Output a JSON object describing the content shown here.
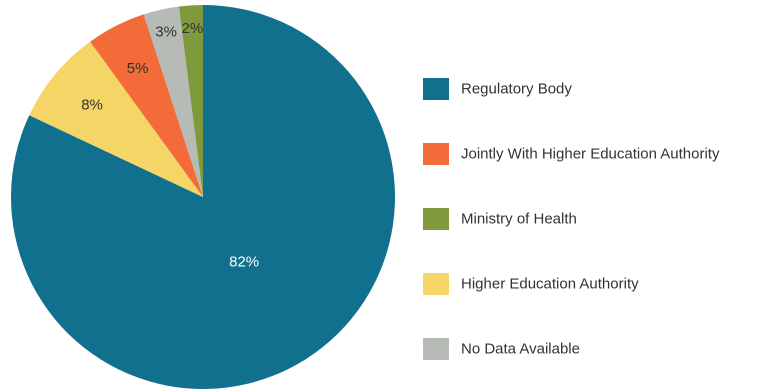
{
  "chart_data": {
    "type": "pie",
    "categories": [
      "Regulatory Body",
      "Jointly With Higher Education Authority",
      "Ministry of Health",
      "Higher Education Authority",
      "No Data Available"
    ],
    "values": [
      82,
      5,
      2,
      8,
      3
    ],
    "value_labels": [
      "82%",
      "5%",
      "2%",
      "8%",
      "3%"
    ],
    "colors": [
      "#12708F",
      "#F26B38",
      "#7E9A3A",
      "#F5D565",
      "#B7BBB5"
    ],
    "label_colors": [
      "#ffffff",
      "#333333",
      "#333333",
      "#333333",
      "#333333"
    ],
    "slice_order": [
      "Regulatory Body",
      "Higher Education Authority",
      "Jointly With Higher Education Authority",
      "No Data Available",
      "Ministry of Health"
    ],
    "direction": "clockwise",
    "start": "top",
    "legend_position": "right"
  }
}
